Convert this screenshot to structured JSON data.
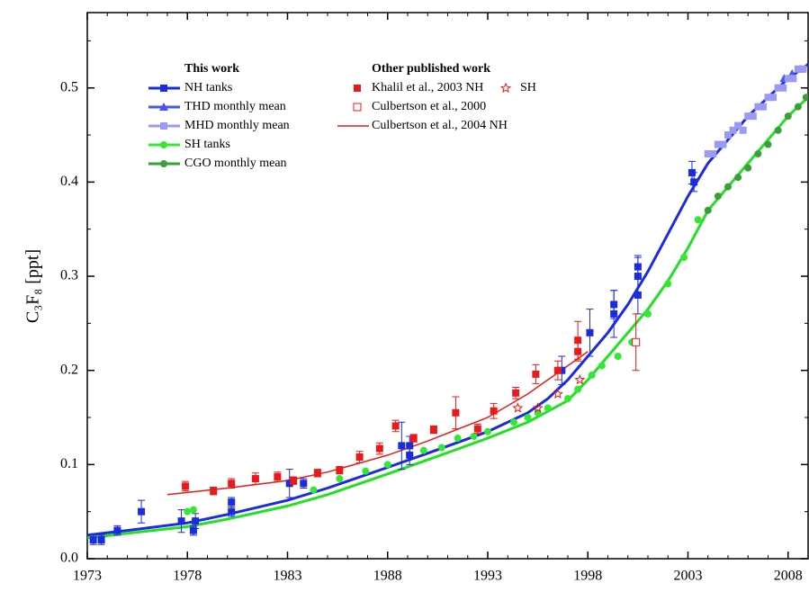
{
  "chart_data": {
    "type": "scatter",
    "y_label": "C₃F₈ [ppt]",
    "xlim": [
      1973,
      2009
    ],
    "ylim": [
      0,
      0.58
    ],
    "xticks": [
      1973,
      1978,
      1983,
      1988,
      1993,
      1998,
      2003,
      2008
    ],
    "yticks": [
      {
        "value": 0,
        "label": "0.0"
      },
      0.1,
      0.2,
      0.3,
      0.4,
      0.5
    ],
    "xminorticks": [
      1974,
      1975,
      1976,
      1977,
      1979,
      1980,
      1981,
      1982,
      1984,
      1985,
      1986,
      1987,
      1989,
      1990,
      1991,
      1992,
      1994,
      1995,
      1996,
      1997,
      1999,
      2000,
      2001,
      2002,
      2004,
      2005,
      2006,
      2007
    ],
    "yminorticks": [
      0.05,
      0.15,
      0.25,
      0.35,
      0.45,
      0.55
    ],
    "legend_titles": [
      "This work",
      "Other published work"
    ],
    "series": [
      {
        "kind": "line",
        "color": "#1a2be0",
        "x": [
          1973,
          1975,
          1978,
          1980,
          1983,
          1985,
          1988,
          1990,
          1993,
          1995,
          1996,
          1997,
          1998,
          1999,
          2000,
          2001,
          2002,
          2003,
          2004,
          2005,
          2006,
          2007,
          2008,
          2009
        ],
        "values": [
          0.025,
          0.03,
          0.038,
          0.047,
          0.062,
          0.075,
          0.097,
          0.112,
          0.135,
          0.155,
          0.17,
          0.19,
          0.215,
          0.24,
          0.27,
          0.305,
          0.345,
          0.385,
          0.42,
          0.445,
          0.47,
          0.49,
          0.51,
          0.525
        ]
      },
      {
        "kind": "line",
        "color": "#22e022",
        "x": [
          1973,
          1975,
          1978,
          1980,
          1983,
          1985,
          1988,
          1990,
          1993,
          1995,
          1997,
          1998,
          1999,
          2000,
          2001,
          2002,
          2003,
          2004,
          2005,
          2006,
          2007,
          2008,
          2009
        ],
        "values": [
          0.022,
          0.027,
          0.034,
          0.042,
          0.056,
          0.068,
          0.09,
          0.105,
          0.128,
          0.145,
          0.168,
          0.19,
          0.215,
          0.24,
          0.265,
          0.295,
          0.33,
          0.37,
          0.395,
          0.42,
          0.445,
          0.47,
          0.49
        ]
      },
      {
        "name": "NH tanks",
        "kind": "points",
        "marker": "square",
        "legend_line": true,
        "group": 0,
        "color": "#1a2be0",
        "x": [
          1973.3,
          1973.7,
          1974.5,
          1975.7,
          1977.7,
          1978.3,
          1978.4,
          1980.2,
          1980.2,
          1983.1,
          1983.8,
          1988.7,
          1989.1,
          1989.1,
          1996.7,
          1998.1,
          1999.3,
          1999.3,
          2000.5,
          2000.5,
          2000.5,
          2003.2,
          2003.3
        ],
        "values": [
          0.02,
          0.02,
          0.03,
          0.05,
          0.04,
          0.03,
          0.04,
          0.05,
          0.06,
          0.08,
          0.08,
          0.12,
          0.11,
          0.12,
          0.2,
          0.24,
          0.26,
          0.27,
          0.28,
          0.3,
          0.31,
          0.41,
          0.4
        ],
        "errors": [
          0.005,
          0.005,
          0.005,
          0.012,
          0.012,
          0.005,
          0.008,
          0.005,
          0.005,
          0.015,
          0.005,
          0.025,
          0.01,
          0.01,
          0.015,
          0.025,
          0.025,
          0.015,
          0.02,
          0.02,
          0.012,
          0.012,
          0.01
        ]
      },
      {
        "name": "THD monthly mean",
        "kind": "points",
        "marker": "triangle",
        "legend_line": true,
        "group": 0,
        "color": "#4a55f0",
        "x": [
          2007.8,
          2008.2,
          2008.6
        ],
        "values": [
          0.51,
          0.515,
          0.52
        ]
      },
      {
        "name": "MHD monthly mean",
        "kind": "points",
        "marker": "square",
        "legend_line": true,
        "group": 0,
        "color": "#9a9af5",
        "x": [
          2004,
          2004.25,
          2004.5,
          2004.75,
          2005,
          2005.25,
          2005.5,
          2005.75,
          2006,
          2006.25,
          2006.5,
          2006.75,
          2007,
          2007.25,
          2007.5,
          2007.75,
          2008,
          2008.25,
          2008.5,
          2008.75
        ],
        "values": [
          0.43,
          0.43,
          0.44,
          0.44,
          0.45,
          0.455,
          0.46,
          0.455,
          0.47,
          0.47,
          0.48,
          0.48,
          0.49,
          0.49,
          0.5,
          0.5,
          0.51,
          0.51,
          0.52,
          0.52
        ]
      },
      {
        "name": "SH tanks",
        "kind": "points",
        "marker": "circle",
        "legend_line": true,
        "group": 0,
        "color": "#33e833",
        "x": [
          1978,
          1978.3,
          1984.3,
          1985.6,
          1986.9,
          1988,
          1989.8,
          1990.7,
          1991.5,
          1992.3,
          1993,
          1994.3,
          1995,
          1995.5,
          1996,
          1997,
          1997.5,
          1998.2,
          1998.7,
          1999.5,
          2000.2,
          2001,
          2002,
          2002.8,
          2003.5
        ],
        "values": [
          0.05,
          0.052,
          0.073,
          0.085,
          0.093,
          0.1,
          0.115,
          0.118,
          0.128,
          0.13,
          0.135,
          0.145,
          0.15,
          0.155,
          0.16,
          0.17,
          0.18,
          0.195,
          0.205,
          0.215,
          0.23,
          0.26,
          0.292,
          0.32,
          0.36
        ]
      },
      {
        "name": "CGO monthly mean",
        "kind": "points",
        "marker": "circle",
        "legend_line": true,
        "group": 0,
        "color": "#3a9e3a",
        "x": [
          2004,
          2004.5,
          2005,
          2005.5,
          2006,
          2006.5,
          2007,
          2007.5,
          2008,
          2008.5,
          2008.9
        ],
        "values": [
          0.37,
          0.385,
          0.395,
          0.405,
          0.415,
          0.43,
          0.44,
          0.455,
          0.47,
          0.48,
          0.49
        ]
      },
      {
        "name": "Khalil et al., 2003 NH",
        "kind": "points",
        "marker": "square",
        "group": 1,
        "color": "#e81a1a",
        "x": [
          1977.9,
          1979.3,
          1980.2,
          1981.4,
          1982.5,
          1983.3,
          1984.5,
          1985.6,
          1986.6,
          1987.6,
          1988.4,
          1989.3,
          1990.3,
          1991.4,
          1992.5,
          1993.3,
          1994.4,
          1995.4,
          1996.5,
          1997.5,
          1997.5
        ],
        "values": [
          0.077,
          0.072,
          0.08,
          0.085,
          0.087,
          0.083,
          0.091,
          0.094,
          0.108,
          0.117,
          0.141,
          0.128,
          0.137,
          0.155,
          0.138,
          0.157,
          0.176,
          0.196,
          0.2,
          0.232,
          0.22
        ],
        "errors": [
          0.005,
          0.004,
          0.005,
          0.006,
          0.005,
          0.004,
          0.004,
          0.004,
          0.006,
          0.006,
          0.006,
          0.004,
          0.004,
          0.017,
          0.005,
          0.008,
          0.006,
          0.01,
          0.01,
          0.02,
          0.01
        ]
      },
      {
        "name": "SH",
        "kind": "points",
        "marker": "star",
        "group": 1,
        "color": "#e81a1a",
        "x": [
          1994.5,
          1995.5,
          1996.5,
          1997.6
        ],
        "values": [
          0.16,
          0.16,
          0.175,
          0.19
        ]
      },
      {
        "name": "Culbertson et al., 2000",
        "kind": "points",
        "marker": "open-square",
        "group": 1,
        "color": "#e81a1a",
        "x": [
          2000.4
        ],
        "values": [
          0.23
        ],
        "errors": [
          0.03
        ]
      },
      {
        "name": "Culbertson et al., 2004 NH",
        "kind": "line",
        "group": 1,
        "color": "#e81a1a",
        "x": [
          1977,
          1980,
          1983,
          1985,
          1988,
          1990,
          1993,
          1995,
          1997,
          1998
        ],
        "values": [
          0.068,
          0.075,
          0.083,
          0.092,
          0.11,
          0.125,
          0.15,
          0.175,
          0.205,
          0.22
        ]
      }
    ]
  }
}
